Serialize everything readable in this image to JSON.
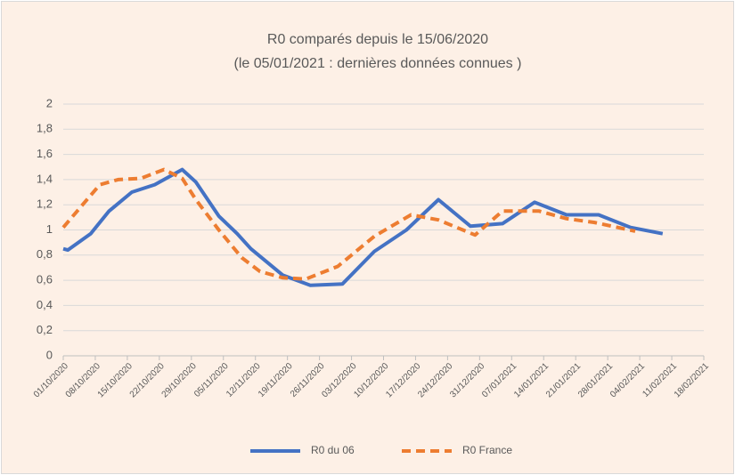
{
  "chart_data": {
    "type": "line",
    "title": "R0 comparés depuis le 15/06/2020",
    "subtitle": "(le 05/01/2021  :  dernières données connues )",
    "xlim": [
      "01/10/2020",
      "18/02/2021"
    ],
    "xticks": [
      "01/10/2020",
      "08/10/2020",
      "15/10/2020",
      "22/10/2020",
      "29/10/2020",
      "05/11/2020",
      "12/11/2020",
      "19/11/2020",
      "26/11/2020",
      "03/12/2020",
      "10/12/2020",
      "17/12/2020",
      "24/12/2020",
      "31/12/2020",
      "07/01/2021",
      "14/01/2021",
      "21/01/2021",
      "28/01/2021",
      "04/02/2021",
      "11/02/2021",
      "18/02/2021"
    ],
    "ylim": [
      0,
      2
    ],
    "yticks": [
      0,
      {
        "value": 0.2,
        "label": "0,2"
      },
      {
        "value": 0.4,
        "label": "0,4"
      },
      {
        "value": 0.6,
        "label": "0,6"
      },
      {
        "value": 0.8,
        "label": "0,8"
      },
      1,
      {
        "value": 1.2,
        "label": "1,2"
      },
      {
        "value": 1.4,
        "label": "1,4"
      },
      {
        "value": 1.6,
        "label": "1,6"
      },
      {
        "value": 1.8,
        "label": "1,8"
      },
      2
    ],
    "grid": true,
    "legend": "bottom",
    "series": [
      {
        "name": "R0 du 06",
        "color": "#4472c4",
        "dashed": false,
        "x": [
          "01/10/2020",
          "02/10/2020",
          "07/10/2020",
          "11/10/2020",
          "16/10/2020",
          "21/10/2020",
          "25/10/2020",
          "27/10/2020",
          "30/10/2020",
          "04/11/2020",
          "08/11/2020",
          "11/11/2020",
          "18/11/2020",
          "24/11/2020",
          "01/12/2020",
          "08/12/2020",
          "15/12/2020",
          "22/12/2020",
          "29/12/2020",
          "05/01/2021",
          "12/01/2021",
          "19/01/2021",
          "26/01/2021",
          "02/02/2021",
          "09/02/2021"
        ],
        "values": [
          0.85,
          0.84,
          0.97,
          1.15,
          1.3,
          1.36,
          1.44,
          1.48,
          1.38,
          1.11,
          0.97,
          0.85,
          0.64,
          0.56,
          0.57,
          0.83,
          1.0,
          1.24,
          1.03,
          1.05,
          1.22,
          1.12,
          1.12,
          1.02,
          0.97
        ]
      },
      {
        "name": "R0 France",
        "color": "#ed7d31",
        "dashed": true,
        "x": [
          "01/10/2020",
          "05/10/2020",
          "09/10/2020",
          "13/10/2020",
          "18/10/2020",
          "23/10/2020",
          "27/10/2020",
          "30/10/2020",
          "04/11/2020",
          "09/11/2020",
          "13/11/2020",
          "18/11/2020",
          "23/11/2020",
          "30/11/2020",
          "08/12/2020",
          "16/12/2020",
          "22/12/2020",
          "30/12/2020",
          "05/01/2021",
          "13/01/2021",
          "19/01/2021",
          "25/01/2021",
          "03/02/2021"
        ],
        "values": [
          1.02,
          1.19,
          1.36,
          1.4,
          1.41,
          1.48,
          1.41,
          1.24,
          1.0,
          0.78,
          0.67,
          0.62,
          0.61,
          0.71,
          0.95,
          1.12,
          1.08,
          0.96,
          1.15,
          1.15,
          1.09,
          1.06,
          0.99
        ]
      }
    ]
  }
}
